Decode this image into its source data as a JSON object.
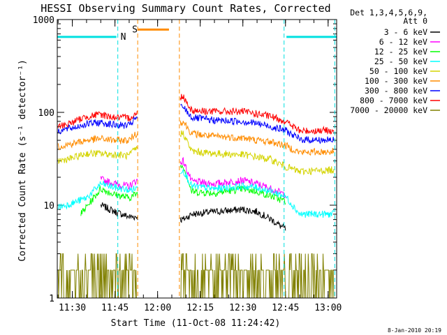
{
  "chart_data": {
    "type": "line",
    "title": "HESSI Observing Summary Count Rates, Corrected",
    "xlabel": "Start Time (11-Oct-08 11:24:42)",
    "ylabel": "Corrected Count Rate (s⁻¹ detector⁻¹)",
    "yscale": "log",
    "xlim": [
      "11:24:42",
      "13:03:00"
    ],
    "ylim": [
      1,
      1000
    ],
    "x_ticks": [
      "11:30",
      "11:45",
      "12:00",
      "12:15",
      "12:30",
      "12:45",
      "13:00"
    ],
    "y_ticks": [
      "1",
      "10",
      "100",
      "1000"
    ],
    "legend_header": [
      "Det 1,3,4,5,6,9,",
      "Att 0"
    ],
    "legend_position": "right",
    "flags": [
      {
        "label": "N",
        "color": "#00e0e0",
        "start": "11:24:42",
        "end": "11:45:30",
        "level": 650
      },
      {
        "label": "S",
        "color": "#ff8c00",
        "start": "11:53:00",
        "end": "12:04:00",
        "level": 780
      },
      {
        "label": "",
        "color": "#00e0e0",
        "start": "12:45:20",
        "end": "13:03:00",
        "level": 650
      }
    ],
    "markers": [
      {
        "color": "#00e0e0",
        "time": "11:46:00"
      },
      {
        "color": "#ff8c00",
        "time": "11:53:00"
      },
      {
        "color": "#ff8c00",
        "time": "12:07:40"
      },
      {
        "color": "#00e0e0",
        "time": "12:44:30"
      },
      {
        "color": "#00e0e0",
        "time": "13:02:20"
      }
    ],
    "gaps": [
      {
        "start": "11:53:00",
        "end": "12:08:00"
      }
    ],
    "series": [
      {
        "name": "3 - 6 keV",
        "color": "#000000",
        "x": [
          "11:40",
          "11:45",
          "11:50",
          "11:52",
          "12:09",
          "12:12",
          "12:20",
          "12:30",
          "12:35",
          "12:40",
          "12:45"
        ],
        "y": [
          10,
          8.5,
          7.5,
          7.5,
          7,
          8,
          8.5,
          9,
          8.5,
          7,
          5.5
        ]
      },
      {
        "name": "6 - 12 keV",
        "color": "#ff00ff",
        "x": [
          "11:40",
          "11:45",
          "11:50",
          "11:52",
          "12:09",
          "12:12",
          "12:20",
          "12:30",
          "12:35",
          "12:40",
          "12:45"
        ],
        "y": [
          19,
          17,
          16,
          18,
          30,
          18,
          17,
          18.5,
          17,
          15,
          13
        ]
      },
      {
        "name": "12 - 25 keV",
        "color": "#00ff00",
        "x": [
          "11:33",
          "11:40",
          "11:45",
          "11:50",
          "11:52",
          "12:09",
          "12:12",
          "12:20",
          "12:30",
          "12:35",
          "12:40",
          "12:45"
        ],
        "y": [
          8,
          15,
          13,
          12,
          13,
          27,
          14,
          13.5,
          15,
          14,
          12.5,
          11
        ]
      },
      {
        "name": "25 - 50 keV",
        "color": "#00ffff",
        "x": [
          "11:25",
          "11:30",
          "11:35",
          "11:40",
          "11:45",
          "11:50",
          "11:52",
          "12:09",
          "12:12",
          "12:20",
          "12:30",
          "12:35",
          "12:40",
          "12:45",
          "12:50",
          "13:02"
        ],
        "y": [
          9.5,
          10.5,
          12,
          17,
          15.5,
          14.5,
          15,
          24,
          16,
          15,
          16,
          15.5,
          14,
          12.5,
          8,
          8
        ]
      },
      {
        "name": "50 - 100 keV",
        "color": "#d4d400",
        "x": [
          "11:25",
          "11:30",
          "11:35",
          "11:40",
          "11:45",
          "11:50",
          "11:52",
          "12:09",
          "12:12",
          "12:20",
          "12:30",
          "12:35",
          "12:40",
          "12:45",
          "12:50",
          "13:02"
        ],
        "y": [
          30,
          32,
          36,
          36,
          35,
          34,
          40,
          60,
          38,
          36,
          35,
          33,
          31,
          26,
          23,
          24
        ]
      },
      {
        "name": "100 - 300 keV",
        "color": "#ff8c00",
        "x": [
          "11:25",
          "11:30",
          "11:35",
          "11:40",
          "11:45",
          "11:50",
          "11:52",
          "12:09",
          "12:12",
          "12:20",
          "12:30",
          "12:35",
          "12:40",
          "12:45",
          "12:50",
          "13:02"
        ],
        "y": [
          43,
          46,
          50,
          52,
          50,
          50,
          58,
          80,
          59,
          55,
          53,
          50,
          48,
          44,
          37,
          38
        ]
      },
      {
        "name": "300 - 800 keV",
        "color": "#0000ff",
        "x": [
          "11:25",
          "11:30",
          "11:35",
          "11:40",
          "11:45",
          "11:50",
          "11:52",
          "12:09",
          "12:12",
          "12:20",
          "12:30",
          "12:35",
          "12:40",
          "12:45",
          "12:50",
          "13:02"
        ],
        "y": [
          63,
          68,
          75,
          78,
          73,
          72,
          85,
          115,
          88,
          82,
          80,
          76,
          70,
          64,
          51,
          50
        ]
      },
      {
        "name": "800 - 7000 keV",
        "color": "#ff0000",
        "x": [
          "11:25",
          "11:30",
          "11:35",
          "11:40",
          "11:45",
          "11:50",
          "11:52",
          "12:09",
          "12:12",
          "12:20",
          "12:30",
          "12:35",
          "12:40",
          "12:45",
          "12:50",
          "13:02"
        ],
        "y": [
          70,
          78,
          90,
          95,
          88,
          87,
          95,
          150,
          105,
          102,
          102,
          96,
          90,
          80,
          63,
          64
        ]
      },
      {
        "name": "7000 - 20000 keV",
        "color": "#808000",
        "x": [
          "11:25",
          "11:30",
          "11:35",
          "11:40",
          "11:45",
          "11:50",
          "11:52",
          "12:09",
          "12:12",
          "12:20",
          "12:30",
          "12:35",
          "12:40",
          "12:45",
          "12:50",
          "13:02"
        ],
        "y": [
          1.5,
          1.8,
          1.6,
          2,
          1.5,
          1.7,
          1.6,
          2.2,
          1.5,
          1.5,
          2,
          1.6,
          1.4,
          1.2,
          1.2,
          1.2
        ]
      }
    ]
  },
  "footer_stamp": "8-Jan-2010 20:19"
}
